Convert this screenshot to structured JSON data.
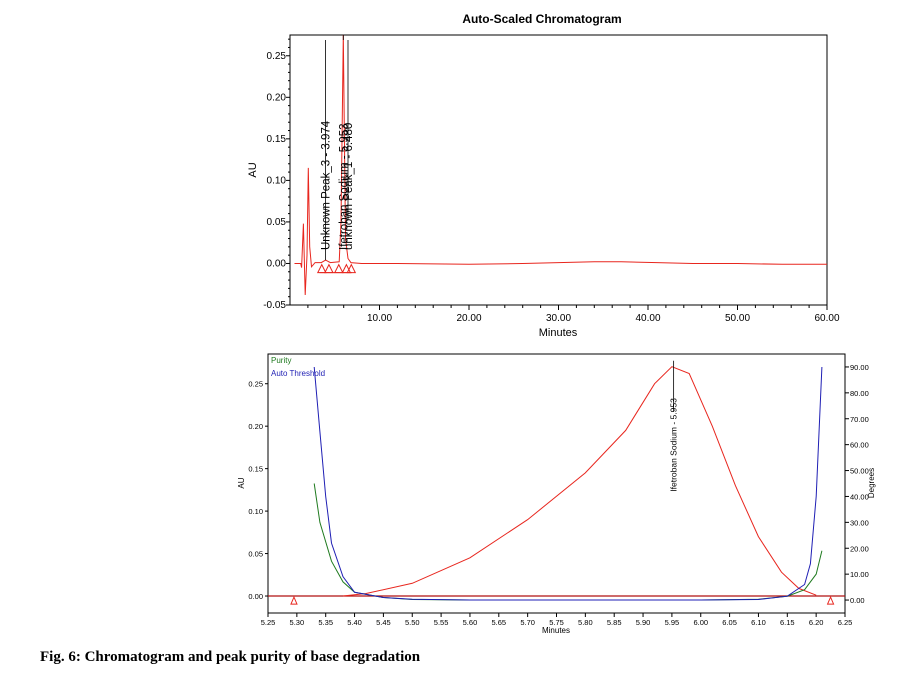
{
  "caption": "Fig. 6: Chromatogram and peak purity of base degradation",
  "colors": {
    "chromatogram": "#e8261e",
    "purity": "#1f7a1f",
    "threshold": "#1f1fb4",
    "axis": "#000000"
  },
  "chart_data": [
    {
      "type": "line",
      "title": "Auto-Scaled Chromatogram",
      "xlabel": "Minutes",
      "ylabel": "AU",
      "xlim": [
        0,
        60
      ],
      "ylim": [
        -0.05,
        0.275
      ],
      "x_ticks": [
        10,
        20,
        30,
        40,
        50,
        60
      ],
      "x_tick_labels": [
        "10.00",
        "20.00",
        "30.00",
        "40.00",
        "50.00",
        "60.00"
      ],
      "y_ticks": [
        -0.05,
        0,
        0.05,
        0.1,
        0.15,
        0.2,
        0.25
      ],
      "y_tick_labels": [
        "-0.05",
        "0.00",
        "0.05",
        "0.10",
        "0.15",
        "0.20",
        "0.25"
      ],
      "grid": false,
      "series": [
        {
          "points": [
            [
              0.5,
              0
            ],
            [
              1.2,
              0
            ],
            [
              1.3,
              -0.005
            ],
            [
              1.5,
              0.048
            ],
            [
              1.7,
              -0.038
            ],
            [
              1.9,
              0.01
            ],
            [
              2.05,
              0.115
            ],
            [
              2.2,
              0.02
            ],
            [
              2.4,
              -0.004
            ],
            [
              2.8,
              0.001
            ],
            [
              3.5,
              0.001
            ],
            [
              3.974,
              0.004
            ],
            [
              4.5,
              0.001
            ],
            [
              5.5,
              0.002
            ],
            [
              5.7,
              0.05
            ],
            [
              5.953,
              0.275
            ],
            [
              6.2,
              0.03
            ],
            [
              6.48,
              0.006
            ],
            [
              6.8,
              0.001
            ],
            [
              8,
              0
            ],
            [
              12,
              0
            ],
            [
              20,
              -0.001
            ],
            [
              26,
              0
            ],
            [
              30,
              0.001
            ],
            [
              34,
              0.002
            ],
            [
              37,
              0.002
            ],
            [
              41,
              0.001
            ],
            [
              45,
              0
            ],
            [
              50,
              0
            ],
            [
              55,
              -0.001
            ],
            [
              60,
              -0.001
            ]
          ]
        }
      ],
      "peaks": [
        {
          "label": "Unknown Peak_3 - 3.974",
          "x": 3.974,
          "y": 0.004
        },
        {
          "label": "Ifetroban Sodium - 5.953",
          "x": 5.953,
          "y": 0.275
        },
        {
          "label": "unknown Peak_1 - 6.480",
          "x": 6.48,
          "y": 0.006
        }
      ]
    },
    {
      "type": "line",
      "xlabel": "Minutes",
      "ylabel": "AU",
      "y2label": "Degrees",
      "xlim": [
        5.25,
        6.25
      ],
      "ylim": [
        -0.02,
        0.285
      ],
      "y2lim": [
        -5,
        95
      ],
      "x_ticks": [
        5.25,
        5.3,
        5.35,
        5.4,
        5.45,
        5.5,
        5.55,
        5.6,
        5.65,
        5.7,
        5.75,
        5.8,
        5.85,
        5.9,
        5.95,
        6.0,
        6.05,
        6.1,
        6.15,
        6.2,
        6.25
      ],
      "x_tick_labels": [
        "5.25",
        "5.30",
        "5.35",
        "5.40",
        "5.45",
        "5.50",
        "5.55",
        "5.60",
        "5.65",
        "5.70",
        "5.75",
        "5.80",
        "5.85",
        "5.90",
        "5.95",
        "6.00",
        "6.05",
        "6.10",
        "6.15",
        "6.20",
        "6.25"
      ],
      "y_ticks": [
        0,
        0.05,
        0.1,
        0.15,
        0.2,
        0.25
      ],
      "y_tick_labels": [
        "0.00",
        "0.05",
        "0.10",
        "0.15",
        "0.20",
        "0.25"
      ],
      "y2_ticks": [
        0,
        10,
        20,
        30,
        40,
        50,
        60,
        70,
        80,
        90
      ],
      "y2_tick_labels": [
        "0.00",
        "10.00",
        "20.00",
        "30.00",
        "40.00",
        "50.00",
        "60.00",
        "70.00",
        "80.00",
        "90.00"
      ],
      "legend": [
        "Purity",
        "Auto Threshold"
      ],
      "legend_position": "top-left",
      "peak_label": {
        "label": "Ifetroban Sodium - 5.953",
        "x": 5.953,
        "y": 0.27
      },
      "series": [
        {
          "name": "Ifetroban Sodium",
          "axis": "left",
          "points": [
            [
              5.38,
              0
            ],
            [
              5.42,
              0.003
            ],
            [
              5.5,
              0.015
            ],
            [
              5.6,
              0.045
            ],
            [
              5.7,
              0.09
            ],
            [
              5.8,
              0.145
            ],
            [
              5.87,
              0.195
            ],
            [
              5.92,
              0.25
            ],
            [
              5.95,
              0.27
            ],
            [
              5.98,
              0.262
            ],
            [
              6.02,
              0.2
            ],
            [
              6.06,
              0.13
            ],
            [
              6.1,
              0.07
            ],
            [
              6.14,
              0.028
            ],
            [
              6.17,
              0.009
            ],
            [
              6.2,
              0.001
            ]
          ]
        },
        {
          "name": "Purity",
          "axis": "right",
          "points": [
            [
              5.33,
              45
            ],
            [
              5.34,
              30
            ],
            [
              5.36,
              15
            ],
            [
              5.38,
              7
            ],
            [
              5.4,
              3
            ],
            [
              5.45,
              1
            ],
            [
              5.5,
              0.2
            ],
            [
              5.6,
              0
            ],
            [
              5.8,
              0
            ],
            [
              6.0,
              0
            ],
            [
              6.1,
              0.3
            ],
            [
              6.15,
              1.5
            ],
            [
              6.18,
              4
            ],
            [
              6.2,
              10
            ],
            [
              6.21,
              19
            ]
          ]
        },
        {
          "name": "Auto Threshold",
          "axis": "right",
          "points": [
            [
              5.33,
              90
            ],
            [
              5.34,
              65
            ],
            [
              5.35,
              40
            ],
            [
              5.36,
              22
            ],
            [
              5.38,
              9
            ],
            [
              5.4,
              3
            ],
            [
              5.45,
              1
            ],
            [
              5.5,
              0.3
            ],
            [
              5.6,
              0
            ],
            [
              5.8,
              0
            ],
            [
              6.0,
              0
            ],
            [
              6.1,
              0.2
            ],
            [
              6.15,
              1.5
            ],
            [
              6.18,
              6
            ],
            [
              6.19,
              14
            ],
            [
              6.2,
              40
            ],
            [
              6.21,
              90
            ]
          ]
        }
      ],
      "integration_markers": [
        5.295,
        6.225
      ]
    }
  ]
}
